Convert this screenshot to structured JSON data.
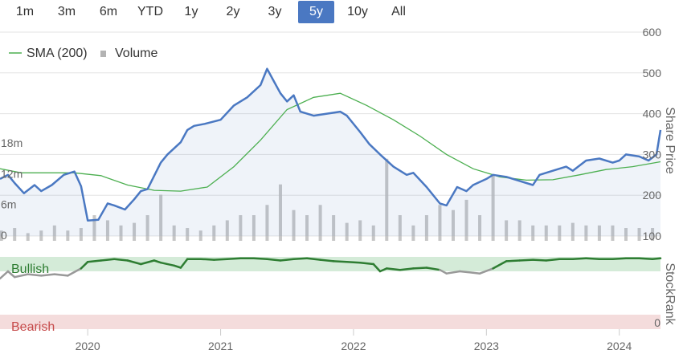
{
  "range_selector": {
    "buttons": [
      {
        "label": "1m"
      },
      {
        "label": "3m"
      },
      {
        "label": "6m"
      },
      {
        "label": "YTD"
      },
      {
        "label": "1y"
      },
      {
        "label": "2y"
      },
      {
        "label": "3y"
      },
      {
        "label": "5y"
      },
      {
        "label": "10y"
      },
      {
        "label": "All"
      }
    ],
    "active_index": 7,
    "active_color": "#4a78c2"
  },
  "legend": {
    "sma_label": "SMA (200)",
    "volume_label": "Volume"
  },
  "colors": {
    "price": "#4a78c2",
    "sma": "#4caf50",
    "volume": "#bdbdbd",
    "bullish_band": "#d4ebd8",
    "bearish_band": "#f4dcdc",
    "rank_bullish_line": "#2e7d32",
    "rank_neutral_line": "#999999",
    "bullish_text": "#2e7d32",
    "bearish_text": "#c64b4b"
  },
  "chart_data": [
    {
      "type": "line",
      "ylabel": "Share Price",
      "yticks": [
        100,
        200,
        300,
        400,
        500,
        600
      ],
      "ylim": [
        100,
        600
      ],
      "x_ticks": [
        "2020",
        "2021",
        "2022",
        "2023",
        "2024"
      ],
      "xlim": [
        2019.34,
        2024.31
      ],
      "grid": true,
      "legend_position": "top-left",
      "series": [
        {
          "name": "",
          "x": [
            2019.34,
            2019.4,
            2019.45,
            2019.52,
            2019.6,
            2019.65,
            2019.73,
            2019.82,
            2019.9,
            2019.95,
            2020.0,
            2020.08,
            2020.15,
            2020.2,
            2020.28,
            2020.35,
            2020.4,
            2020.45,
            2020.55,
            2020.6,
            2020.7,
            2020.75,
            2020.8,
            2020.88,
            2021.0,
            2021.1,
            2021.2,
            2021.3,
            2021.35,
            2021.4,
            2021.45,
            2021.5,
            2021.55,
            2021.6,
            2021.65,
            2021.7,
            2021.8,
            2021.9,
            2021.95,
            2022.05,
            2022.12,
            2022.2,
            2022.3,
            2022.4,
            2022.45,
            2022.55,
            2022.65,
            2022.7,
            2022.78,
            2022.85,
            2022.9,
            2023.0,
            2023.05,
            2023.15,
            2023.25,
            2023.35,
            2023.4,
            2023.5,
            2023.6,
            2023.65,
            2023.75,
            2023.85,
            2023.95,
            2024.0,
            2024.05,
            2024.15,
            2024.22,
            2024.28,
            2024.31
          ],
          "y": [
            240,
            250,
            230,
            205,
            225,
            210,
            225,
            250,
            258,
            222,
            138,
            140,
            180,
            175,
            165,
            190,
            210,
            215,
            280,
            300,
            330,
            360,
            370,
            375,
            385,
            420,
            440,
            470,
            510,
            480,
            450,
            430,
            445,
            405,
            400,
            395,
            400,
            405,
            395,
            355,
            325,
            300,
            270,
            250,
            255,
            220,
            180,
            175,
            220,
            210,
            225,
            240,
            250,
            245,
            235,
            225,
            250,
            260,
            270,
            260,
            285,
            290,
            280,
            285,
            300,
            295,
            285,
            300,
            360
          ]
        },
        {
          "name": "SMA (200)",
          "x": [
            2019.34,
            2019.5,
            2019.7,
            2019.9,
            2020.1,
            2020.3,
            2020.5,
            2020.7,
            2020.9,
            2021.1,
            2021.3,
            2021.5,
            2021.7,
            2021.9,
            2022.1,
            2022.3,
            2022.5,
            2022.7,
            2022.9,
            2023.1,
            2023.3,
            2023.5,
            2023.7,
            2023.9,
            2024.1,
            2024.31
          ],
          "y": [
            265,
            255,
            255,
            255,
            248,
            225,
            212,
            210,
            220,
            270,
            335,
            410,
            440,
            450,
            420,
            385,
            345,
            300,
            265,
            245,
            237,
            238,
            250,
            263,
            270,
            282
          ]
        }
      ]
    },
    {
      "type": "bar",
      "ylabel": "",
      "yticks": [
        "0",
        "6m",
        "12m",
        "18m"
      ],
      "ylim": [
        0,
        18
      ],
      "x": [
        2019.35,
        2019.45,
        2019.55,
        2019.65,
        2019.75,
        2019.85,
        2019.95,
        2020.05,
        2020.15,
        2020.25,
        2020.35,
        2020.45,
        2020.55,
        2020.65,
        2020.75,
        2020.85,
        2020.95,
        2021.05,
        2021.15,
        2021.25,
        2021.35,
        2021.45,
        2021.55,
        2021.65,
        2021.75,
        2021.85,
        2021.95,
        2022.05,
        2022.15,
        2022.25,
        2022.35,
        2022.45,
        2022.55,
        2022.65,
        2022.75,
        2022.85,
        2022.95,
        2023.05,
        2023.15,
        2023.25,
        2023.35,
        2023.45,
        2023.55,
        2023.65,
        2023.75,
        2023.85,
        2023.95,
        2024.05,
        2024.15,
        2024.25
      ],
      "values": [
        2,
        2.5,
        1.5,
        2,
        3,
        2,
        2.5,
        5,
        4,
        3,
        3.5,
        5,
        9,
        3,
        2.5,
        2,
        3,
        4,
        5,
        5,
        7,
        11,
        6,
        5,
        7,
        5,
        3.5,
        4,
        3,
        16,
        5,
        3,
        5,
        7,
        6,
        8,
        5,
        13,
        4,
        4,
        3,
        3,
        3,
        3.5,
        3,
        3,
        3,
        2.5,
        2.5,
        2.5
      ]
    },
    {
      "type": "line",
      "ylabel": "StockRank",
      "yticks": [
        0
      ],
      "ylim": [
        0,
        100
      ],
      "zones": [
        {
          "label": "Bullish",
          "from": 80,
          "to": 100
        },
        {
          "label": "Bearish",
          "from": 0,
          "to": 20
        }
      ],
      "series": [
        {
          "name": "",
          "x": [
            2019.34,
            2019.4,
            2019.45,
            2019.55,
            2019.65,
            2019.75,
            2019.85,
            2019.95,
            2020.0,
            2020.1,
            2020.2,
            2020.3,
            2020.4,
            2020.5,
            2020.55,
            2020.65,
            2020.7,
            2020.75,
            2020.85,
            2020.95,
            2021.05,
            2021.15,
            2021.25,
            2021.35,
            2021.45,
            2021.55,
            2021.65,
            2021.75,
            2021.85,
            2021.95,
            2022.05,
            2022.15,
            2022.2,
            2022.25,
            2022.35,
            2022.45,
            2022.55,
            2022.65,
            2022.7,
            2022.8,
            2022.9,
            2022.95,
            2023.05,
            2023.15,
            2023.25,
            2023.35,
            2023.45,
            2023.55,
            2023.65,
            2023.75,
            2023.85,
            2023.95,
            2024.05,
            2024.15,
            2024.25,
            2024.31
          ],
          "y": [
            70,
            80,
            72,
            76,
            74,
            76,
            74,
            84,
            93,
            95,
            97,
            95,
            90,
            95,
            92,
            88,
            85,
            97,
            97,
            96,
            97,
            98,
            98,
            97,
            95,
            97,
            98,
            96,
            94,
            93,
            92,
            90,
            80,
            84,
            82,
            84,
            85,
            82,
            77,
            80,
            78,
            77,
            84,
            94,
            95,
            96,
            95,
            97,
            97,
            98,
            97,
            97,
            98,
            98,
            97,
            98
          ]
        }
      ]
    }
  ]
}
